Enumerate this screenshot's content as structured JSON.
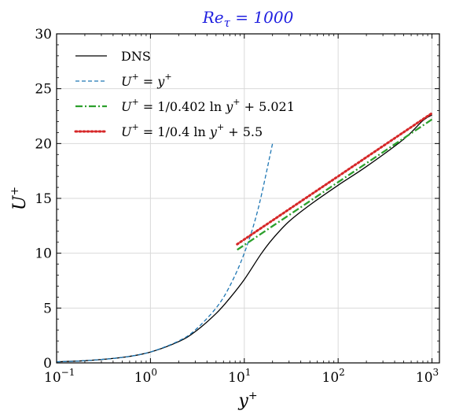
{
  "chart_data": {
    "type": "line",
    "title": "Re_τ = 1000",
    "title_color": "#2020e0",
    "xlabel": "y⁺",
    "ylabel": "U⁺",
    "xscale": "log",
    "xlim": [
      0.1,
      1200
    ],
    "ylim": [
      0,
      30
    ],
    "grid": true,
    "legend_position": "top-left",
    "x_ticks": [
      {
        "value": 0.1,
        "base": "10",
        "exp": "−1"
      },
      {
        "value": 1,
        "base": "10",
        "exp": "0"
      },
      {
        "value": 10,
        "base": "10",
        "exp": "1"
      },
      {
        "value": 100,
        "base": "10",
        "exp": "2"
      },
      {
        "value": 1000,
        "base": "10",
        "exp": "3"
      }
    ],
    "y_ticks": [
      {
        "value": 0,
        "label": "0"
      },
      {
        "value": 5,
        "label": "5"
      },
      {
        "value": 10,
        "label": "10"
      },
      {
        "value": 15,
        "label": "15"
      },
      {
        "value": 20,
        "label": "20"
      },
      {
        "value": 25,
        "label": "25"
      },
      {
        "value": 30,
        "label": "30"
      }
    ],
    "series": [
      {
        "name": "DNS",
        "color": "#000000",
        "style": "solid",
        "x": [
          0.1,
          0.2,
          0.5,
          1,
          2,
          3,
          5,
          7,
          10,
          15,
          20,
          30,
          50,
          100,
          200,
          500,
          800,
          1000
        ],
        "y": [
          0.1,
          0.2,
          0.5,
          0.99,
          1.94,
          2.85,
          4.5,
          5.9,
          7.6,
          9.9,
          11.3,
          12.9,
          14.4,
          16.2,
          17.9,
          20.4,
          22.1,
          22.6
        ]
      },
      {
        "name": "U⁺ = y⁺",
        "color": "#1f77b4",
        "style": "dashed",
        "x": [
          0.1,
          0.2,
          0.5,
          1,
          2,
          3,
          5,
          7,
          10,
          14,
          20
        ],
        "y": [
          0.1,
          0.2,
          0.5,
          1,
          2,
          3,
          5,
          7,
          10,
          14,
          20
        ]
      },
      {
        "name": "U⁺ = (1/0.402) ln y⁺ + 5.021",
        "color": "#2ca02c",
        "style": "dashdot",
        "x": [
          8.4,
          20,
          50,
          100,
          200,
          500,
          1000
        ],
        "y": [
          10.31,
          12.47,
          14.75,
          16.48,
          18.2,
          20.48,
          22.2
        ]
      },
      {
        "name": "U⁺ = (1/0.4) ln y⁺ + 5.5",
        "color": "#d62728",
        "style": "dotted",
        "x": [
          8.4,
          20,
          50,
          100,
          200,
          500,
          1000
        ],
        "y": [
          10.82,
          12.99,
          15.28,
          17.01,
          18.75,
          21.04,
          22.77
        ]
      }
    ]
  }
}
